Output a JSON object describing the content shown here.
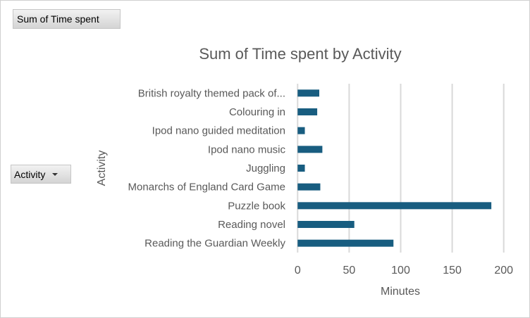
{
  "buttons": {
    "value_field": "Sum of Time spent",
    "axis_field": "Activity"
  },
  "colors": {
    "bar": "#185d80",
    "grid": "#d9d9d9",
    "text": "#595959"
  },
  "chart_data": {
    "type": "bar",
    "orientation": "horizontal",
    "title": "Sum of Time spent by Activity",
    "xlabel": "Minutes",
    "ylabel": "Activity",
    "categories": [
      "British royalty themed pack of...",
      "Colouring in",
      "Ipod nano guided meditation",
      "Ipod nano music",
      "Juggling",
      "Monarchs of England Card Game",
      "Puzzle book",
      "Reading novel",
      "Reading the Guardian Weekly"
    ],
    "values": [
      21,
      19,
      7,
      24,
      7,
      22,
      188,
      55,
      93
    ],
    "xlim": [
      0,
      200
    ],
    "xticks": [
      "0",
      "50",
      "100",
      "150",
      "200"
    ],
    "grid": true,
    "legend": "none"
  }
}
